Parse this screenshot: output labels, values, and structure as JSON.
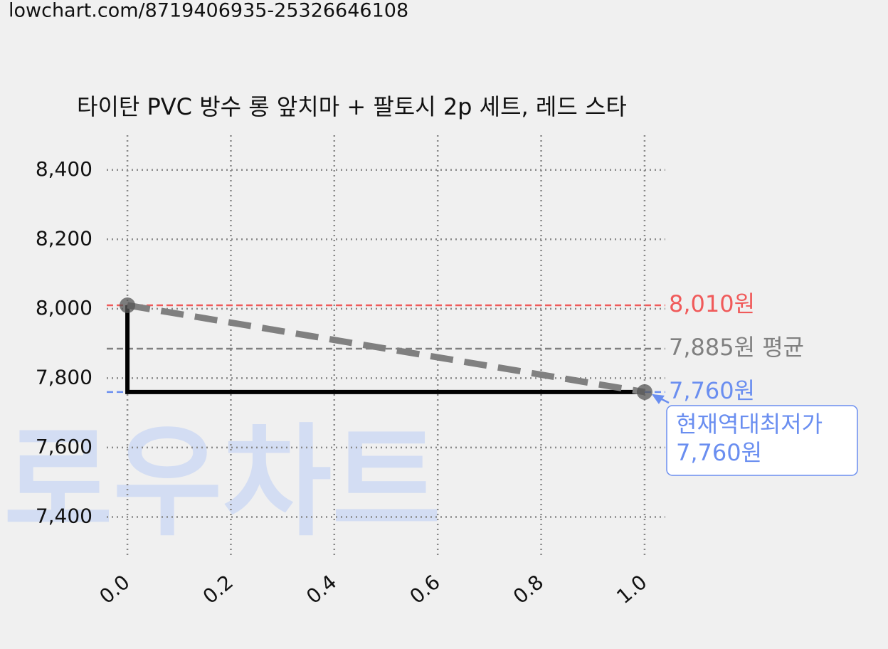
{
  "url": "lowchart.com/8719406935-25326646108",
  "chart_data": {
    "type": "line",
    "title": "타이탄 PVC 방수 롱 앞치마 + 팔토시 2p 세트, 레드 스타",
    "watermark": "로우차트",
    "series": [
      {
        "x": [
          0,
          0,
          1
        ],
        "values": [
          8010,
          7760,
          7760
        ],
        "color": "#000000",
        "style": "solid",
        "markers": false
      },
      {
        "x": [
          0,
          1
        ],
        "values": [
          8010,
          7760
        ],
        "color": "#808080",
        "style": "dashed",
        "markers": true
      }
    ],
    "hlines": [
      {
        "value": 8010,
        "label": "8,010원",
        "color": "#f05a5a"
      },
      {
        "value": 7885,
        "label": "7,885원 평균",
        "color": "#808080"
      },
      {
        "value": 7760,
        "label": "7,760원",
        "color": "#6a8ef0"
      }
    ],
    "annotation": {
      "x": 1,
      "y": 7760,
      "lines": [
        "현재역대최저가",
        "7,760원"
      ],
      "color": "#6a8ef0"
    },
    "xlim": [
      -0.04,
      1.04
    ],
    "ylim": [
      7280,
      8500
    ],
    "xticks": [
      {
        "value": 0,
        "label": "0.0"
      },
      {
        "value": 0.2,
        "label": "0.2"
      },
      {
        "value": 0.4,
        "label": "0.4"
      },
      {
        "value": 0.6,
        "label": "0.6"
      },
      {
        "value": 0.8,
        "label": "0.8"
      },
      {
        "value": 1,
        "label": "1.0"
      }
    ],
    "yticks": [
      {
        "value": 7400,
        "label": "7,400"
      },
      {
        "value": 7600,
        "label": "7,600"
      },
      {
        "value": 7800,
        "label": "7,800"
      },
      {
        "value": 8000,
        "label": "8,000"
      },
      {
        "value": 8200,
        "label": "8,200"
      },
      {
        "value": 8400,
        "label": "8,400"
      }
    ],
    "grid": true
  }
}
